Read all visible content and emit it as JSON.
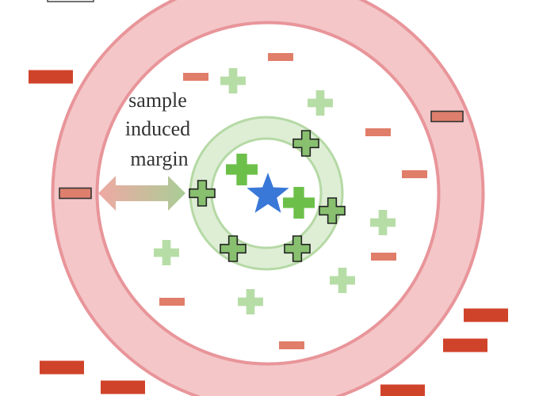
{
  "label": {
    "lines": [
      "sample",
      "induced",
      "margin"
    ]
  },
  "colors": {
    "outer_ring_fill": "#f4c6c8",
    "outer_ring_stroke": "#e8959a",
    "inner_ring_fill": "#deeed5",
    "inner_ring_stroke": "#b5d9a5",
    "anchor_star": "#3a78d8",
    "positive_bright": "#6cc04a",
    "positive_faint": "#b7dda7",
    "positive_boundary": "#88c070",
    "negative_dark": "#d0432b",
    "negative_light": "#e07e6a",
    "negative_boundary": "#de7f6e",
    "arrow_left": "#f0a9a4",
    "arrow_right": "#a9cd95"
  },
  "legend_symbols": {
    "anchor": "star-icon",
    "positive": "plus-icon",
    "negative": "minus-icon"
  }
}
